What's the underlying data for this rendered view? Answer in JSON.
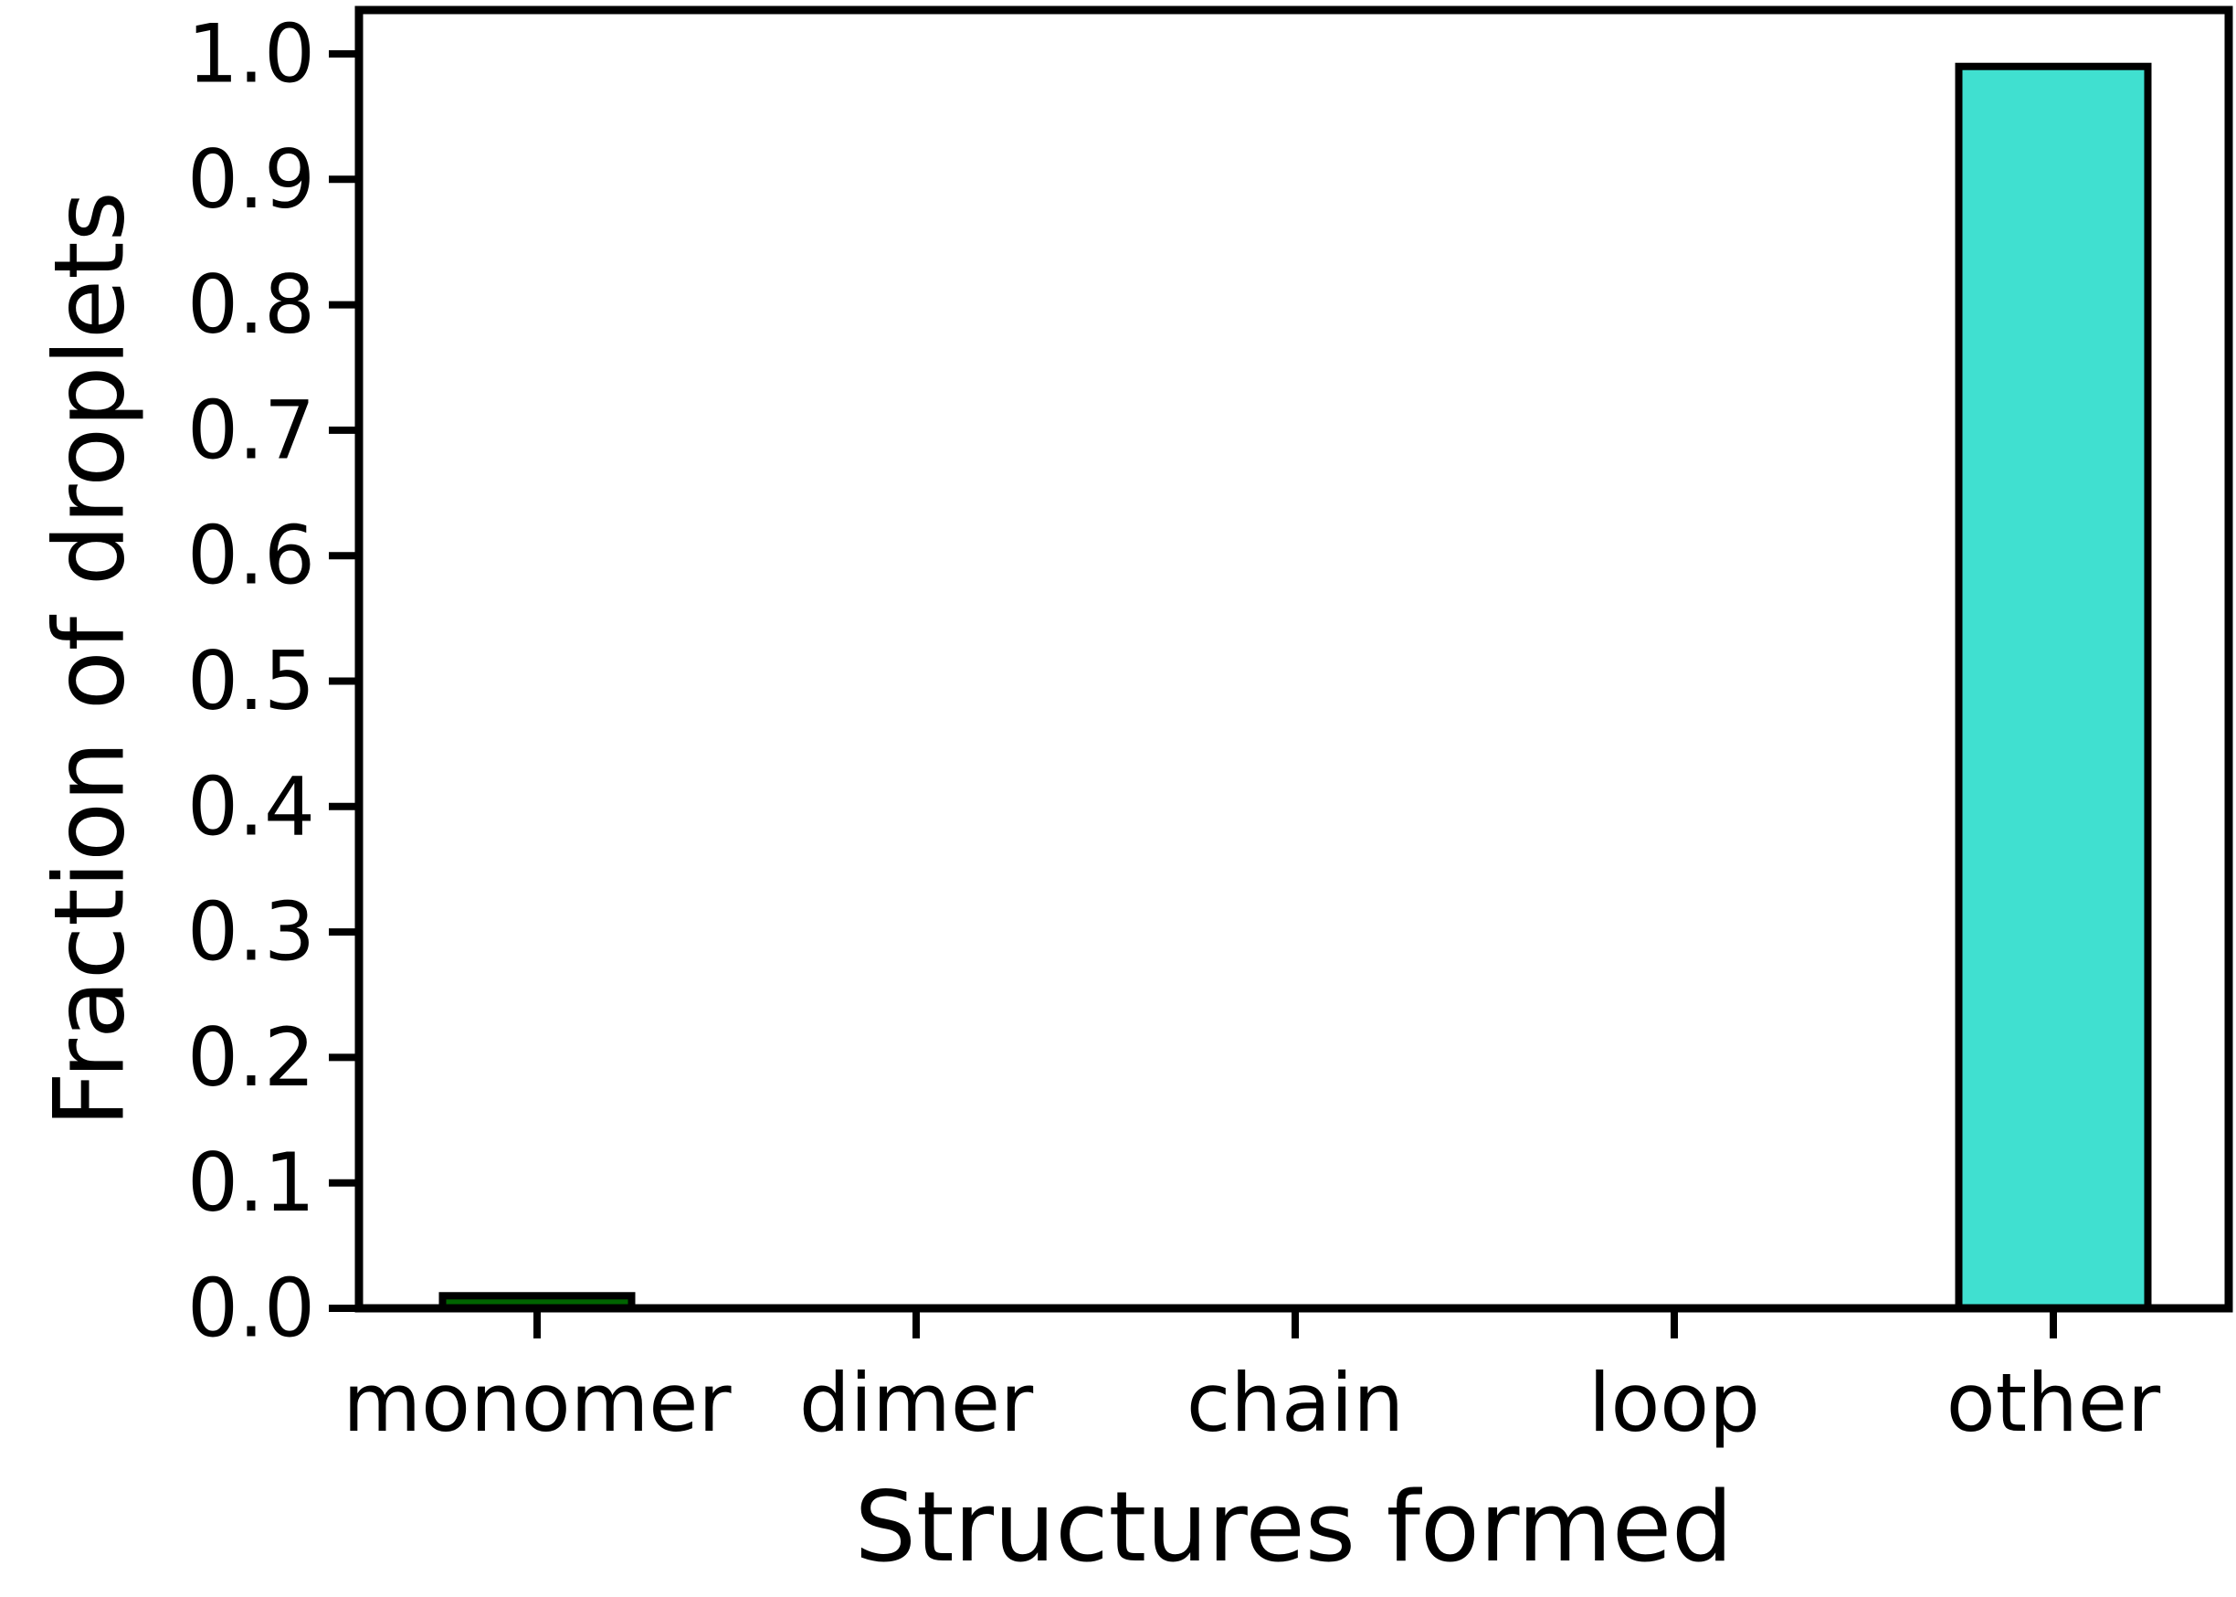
{
  "chart_data": {
    "type": "bar",
    "title": "",
    "xlabel": "Structures formed",
    "ylabel": "Fraction of droplets",
    "categories": [
      "monomer",
      "dimer",
      "chain",
      "loop",
      "other"
    ],
    "values": [
      0.01,
      0.0,
      0.0,
      0.0,
      0.99
    ],
    "colors": [
      "#006400",
      "#006400",
      "#006400",
      "#006400",
      "#40E0D0"
    ],
    "edge_color": "#000000",
    "ylim": [
      0.0,
      1.0
    ],
    "yticks": [
      "0.0",
      "0.1",
      "0.2",
      "0.3",
      "0.4",
      "0.5",
      "0.6",
      "0.7",
      "0.8",
      "0.9",
      "1.0"
    ],
    "grid": false,
    "legend": "none"
  }
}
